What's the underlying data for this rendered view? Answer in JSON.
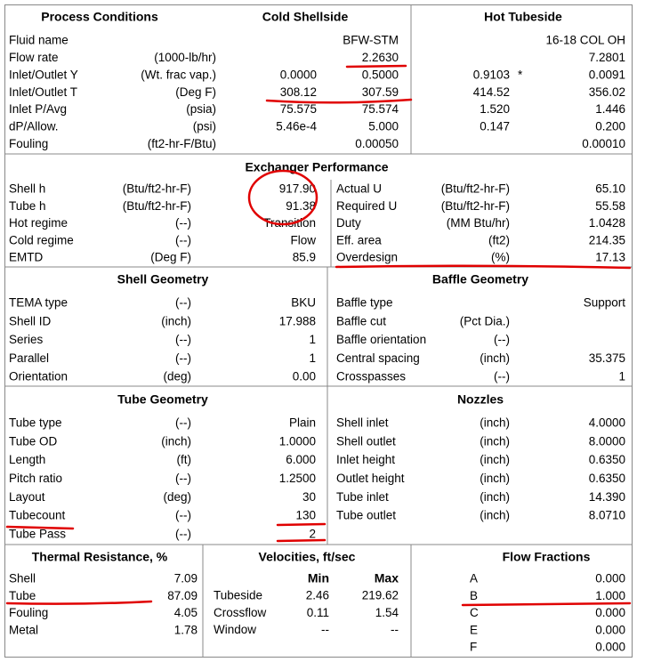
{
  "process_conditions": {
    "title": "Process Conditions",
    "cold_title": "Cold Shellside",
    "hot_title": "Hot Tubeside",
    "rows": [
      {
        "label": "Fluid name",
        "cold_out": "BFW-STM",
        "hot_out": "16-18 COL OH"
      },
      {
        "label": "Flow rate",
        "unit": "(1000-lb/hr)",
        "cold_out": "2.2630",
        "hot_out": "7.2801"
      },
      {
        "label": "Inlet/Outlet Y",
        "unit": "(Wt. frac vap.)",
        "cold_in": "0.0000",
        "cold_out": "0.5000",
        "hot_in": "0.9103",
        "hot_flag": "*",
        "hot_out": "0.0091"
      },
      {
        "label": "Inlet/Outlet T",
        "unit": "(Deg F)",
        "cold_in": "308.12",
        "cold_out": "307.59",
        "hot_in": "414.52",
        "hot_out": "356.02"
      },
      {
        "label": "Inlet P/Avg",
        "unit": "(psia)",
        "cold_in": "75.575",
        "cold_out": "75.574",
        "hot_in": "1.520",
        "hot_out": "1.446"
      },
      {
        "label": "dP/Allow.",
        "unit": "(psi)",
        "cold_in": "5.46e-4",
        "cold_out": "5.000",
        "hot_in": "0.147",
        "hot_out": "0.200"
      },
      {
        "label": "Fouling",
        "unit": "(ft2-hr-F/Btu)",
        "cold_out": "0.00050",
        "hot_out": "0.00010"
      }
    ]
  },
  "exchanger_performance": {
    "title": "Exchanger Performance",
    "left": [
      {
        "label": "Shell h",
        "unit": "(Btu/ft2-hr-F)",
        "value": "917.90"
      },
      {
        "label": "Tube h",
        "unit": "(Btu/ft2-hr-F)",
        "value": "91.38"
      },
      {
        "label": "Hot regime",
        "unit": "(--)",
        "value": "Transition"
      },
      {
        "label": "Cold regime",
        "unit": "(--)",
        "value": "Flow"
      },
      {
        "label": "EMTD",
        "unit": "(Deg F)",
        "value": "85.9"
      }
    ],
    "right": [
      {
        "label": "Actual U",
        "unit": "(Btu/ft2-hr-F)",
        "value": "65.10"
      },
      {
        "label": "Required U",
        "unit": "(Btu/ft2-hr-F)",
        "value": "55.58"
      },
      {
        "label": "Duty",
        "unit": "(MM Btu/hr)",
        "value": "1.0428"
      },
      {
        "label": "Eff. area",
        "unit": "(ft2)",
        "value": "214.35"
      },
      {
        "label": "Overdesign",
        "unit": "(%)",
        "value": "17.13"
      }
    ]
  },
  "shell_geometry": {
    "title": "Shell Geometry",
    "rows": [
      {
        "label": "TEMA type",
        "unit": "(--)",
        "value": "BKU"
      },
      {
        "label": "Shell ID",
        "unit": "(inch)",
        "value": "17.988"
      },
      {
        "label": "Series",
        "unit": "(--)",
        "value": "1"
      },
      {
        "label": "Parallel",
        "unit": "(--)",
        "value": "1"
      },
      {
        "label": "Orientation",
        "unit": "(deg)",
        "value": "0.00"
      }
    ]
  },
  "baffle_geometry": {
    "title": "Baffle Geometry",
    "rows": [
      {
        "label": "Baffle type",
        "value": "Support"
      },
      {
        "label": "Baffle cut",
        "unit": "(Pct Dia.)"
      },
      {
        "label": "Baffle orientation",
        "unit": "(--)"
      },
      {
        "label": "Central spacing",
        "unit": "(inch)",
        "value": "35.375"
      },
      {
        "label": "Crosspasses",
        "unit": "(--)",
        "value": "1"
      }
    ]
  },
  "tube_geometry": {
    "title": "Tube Geometry",
    "rows": [
      {
        "label": "Tube type",
        "unit": "(--)",
        "value": "Plain"
      },
      {
        "label": "Tube OD",
        "unit": "(inch)",
        "value": "1.0000"
      },
      {
        "label": "Length",
        "unit": "(ft)",
        "value": "6.000"
      },
      {
        "label": "Pitch ratio",
        "unit": "(--)",
        "value": "1.2500"
      },
      {
        "label": "Layout",
        "unit": "(deg)",
        "value": "30"
      },
      {
        "label": "Tubecount",
        "unit": "(--)",
        "value": "130"
      },
      {
        "label": "Tube Pass",
        "unit": "(--)",
        "value": "2"
      }
    ]
  },
  "nozzles": {
    "title": "Nozzles",
    "rows": [
      {
        "label": "Shell inlet",
        "unit": "(inch)",
        "value": "4.0000"
      },
      {
        "label": "Shell outlet",
        "unit": "(inch)",
        "value": "8.0000"
      },
      {
        "label": "Inlet height",
        "unit": "(inch)",
        "value": "0.6350"
      },
      {
        "label": "Outlet height",
        "unit": "(inch)",
        "value": "0.6350"
      },
      {
        "label": "Tube inlet",
        "unit": "(inch)",
        "value": "14.390"
      },
      {
        "label": "Tube outlet",
        "unit": "(inch)",
        "value": "8.0710"
      }
    ]
  },
  "thermal_resistance": {
    "title": "Thermal Resistance, %",
    "rows": [
      {
        "label": "Shell",
        "value": "7.09"
      },
      {
        "label": "Tube",
        "value": "87.09"
      },
      {
        "label": "Fouling",
        "value": "4.05"
      },
      {
        "label": "Metal",
        "value": "1.78"
      }
    ]
  },
  "velocities": {
    "title": "Velocities, ft/sec",
    "min_header": "Min",
    "max_header": "Max",
    "rows": [
      {
        "label": "Tubeside",
        "min": "2.46",
        "max": "219.62"
      },
      {
        "label": "Crossflow",
        "min": "0.11",
        "max": "1.54"
      },
      {
        "label": "Window",
        "min": "--",
        "max": "--"
      }
    ]
  },
  "flow_fractions": {
    "title": "Flow Fractions",
    "rows": [
      {
        "label": "A",
        "value": "0.000"
      },
      {
        "label": "B",
        "value": "1.000"
      },
      {
        "label": "C",
        "value": "0.000"
      },
      {
        "label": "E",
        "value": "0.000"
      },
      {
        "label": "F",
        "value": "0.000"
      }
    ]
  }
}
